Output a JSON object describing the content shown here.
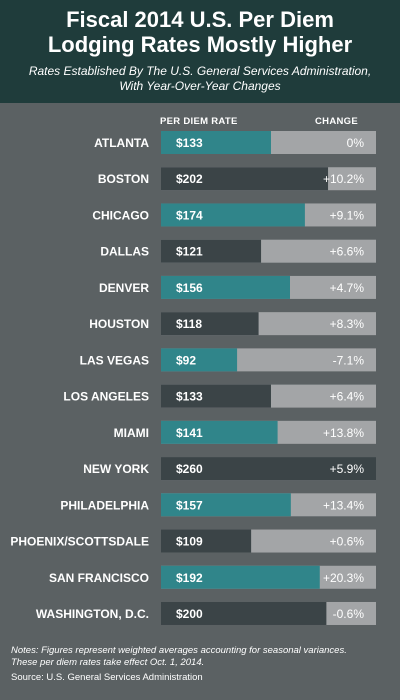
{
  "title_lines": [
    "Fiscal 2014 U.S. Per Diem",
    "Lodging Rates Mostly Higher"
  ],
  "subtitle_lines": [
    "Rates Established By The U.S. General Services Administration,",
    "With Year-Over-Year Changes"
  ],
  "columns": {
    "rate": "PER DIEM RATE",
    "change": "CHANGE"
  },
  "notes_lines": [
    "Notes: Figures represent weighted averages accounting for seasonal variances.",
    "These per diem rates take effect Oct. 1, 2014."
  ],
  "source": "Source: U.S. General Services Administration",
  "colors": {
    "teal": "#30858a",
    "dark": "#3b4447",
    "track": "#a3a5a7",
    "header_bg": "#1f3c3b",
    "background": "#5b6163"
  },
  "chart_data": {
    "type": "bar",
    "categories": [
      "ATLANTA",
      "BOSTON",
      "CHICAGO",
      "DALLAS",
      "DENVER",
      "HOUSTON",
      "LAS VEGAS",
      "LOS ANGELES",
      "MIAMI",
      "NEW YORK",
      "PHILADELPHIA",
      "PHOENIX/SCOTTSDALE",
      "SAN FRANCISCO",
      "WASHINGTON, D.C."
    ],
    "values": [
      133,
      202,
      174,
      121,
      156,
      118,
      92,
      133,
      141,
      260,
      157,
      109,
      192,
      200
    ],
    "value_labels": [
      "$133",
      "$202",
      "$174",
      "$121",
      "$156",
      "$118",
      "$92",
      "$133",
      "$141",
      "$260",
      "$157",
      "$109",
      "$192",
      "$200"
    ],
    "changes": [
      0,
      10.2,
      9.1,
      6.6,
      4.7,
      8.3,
      -7.1,
      6.4,
      13.8,
      5.9,
      13.4,
      0.6,
      20.3,
      -0.6
    ],
    "change_labels": [
      "0%",
      "+10.2%",
      "+9.1%",
      "+6.6%",
      "+4.7%",
      "+8.3%",
      "-7.1%",
      "+6.4%",
      "+13.8%",
      "+5.9%",
      "+13.4%",
      "+0.6%",
      "+20.3%",
      "-0.6%"
    ],
    "bar_colors": [
      "teal",
      "dark",
      "teal",
      "dark",
      "teal",
      "dark",
      "teal",
      "dark",
      "teal",
      "dark",
      "teal",
      "dark",
      "teal",
      "dark"
    ],
    "xlabel": "PER DIEM RATE",
    "ylabel": "",
    "xlim": [
      0,
      260
    ]
  }
}
